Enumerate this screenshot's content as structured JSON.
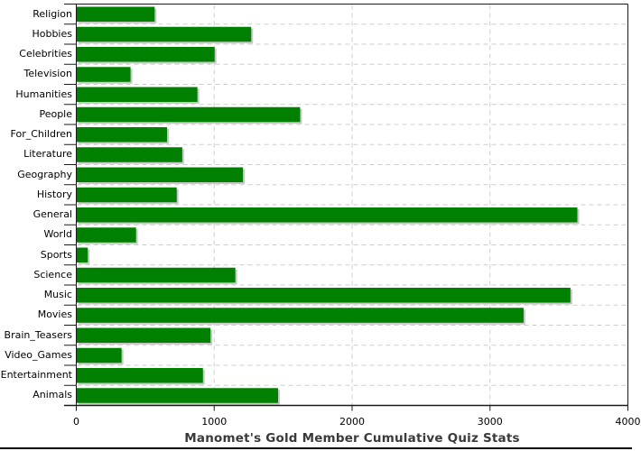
{
  "chart_data": {
    "type": "bar",
    "orientation": "horizontal",
    "title": "Manomet's Gold Member Cumulative Quiz Stats",
    "categories": [
      "Religion",
      "Hobbies",
      "Celebrities",
      "Television",
      "Humanities",
      "People",
      "For_Children",
      "Literature",
      "Geography",
      "History",
      "General",
      "World",
      "Sports",
      "Science",
      "Music",
      "Movies",
      "Brain_Teasers",
      "Video_Games",
      "Entertainment",
      "Animals"
    ],
    "values": [
      565,
      1265,
      1000,
      390,
      875,
      1620,
      655,
      765,
      1205,
      725,
      3630,
      430,
      80,
      1150,
      3580,
      3240,
      970,
      325,
      915,
      1460
    ],
    "xlabel": "",
    "ylabel": "",
    "xlim": [
      0,
      4000
    ],
    "x_ticks": [
      0,
      1000,
      2000,
      3000,
      4000
    ],
    "x_tick_labels": [
      "0",
      "1000",
      "2000",
      "3000",
      "4000"
    ],
    "grid": true,
    "legend": "none",
    "colors": {
      "bar": "#008000",
      "bar_shadow": "#c8c8c8",
      "gridline": "#cdcdcd",
      "axis": "#1a1a1a",
      "tick_text": "#000000",
      "title_text": "#3a3a3a",
      "background": "#ffffff"
    }
  }
}
